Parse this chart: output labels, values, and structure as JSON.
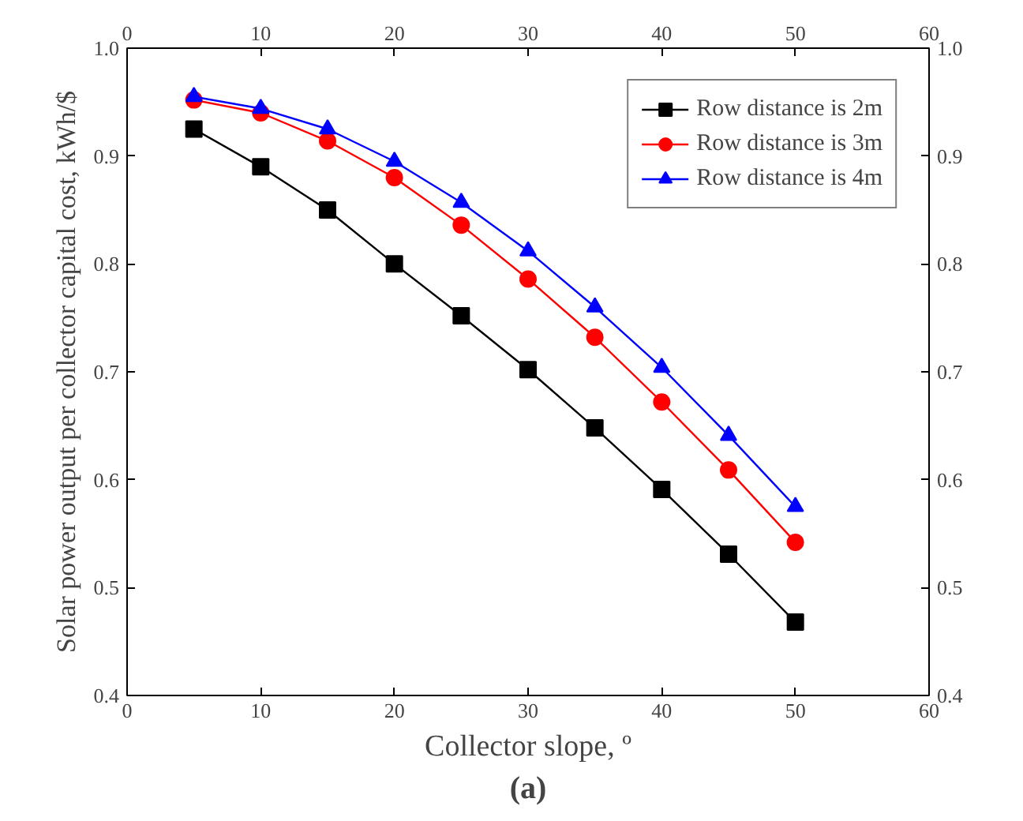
{
  "chart_data": {
    "type": "line",
    "xlabel": "Collector slope, º",
    "ylabel": "Solar power output per collector capital cost, kWh/$",
    "annotations": [
      "(a)"
    ],
    "x": [
      5,
      10,
      15,
      20,
      25,
      30,
      35,
      40,
      45,
      50
    ],
    "series": [
      {
        "name": "Row distance is 2m",
        "color": "#000000",
        "marker": "square",
        "values": [
          0.925,
          0.89,
          0.85,
          0.8,
          0.752,
          0.702,
          0.648,
          0.591,
          0.531,
          0.468
        ]
      },
      {
        "name": "Row distance is 3m",
        "color": "#ff0000",
        "marker": "circle",
        "values": [
          0.952,
          0.94,
          0.914,
          0.88,
          0.836,
          0.786,
          0.732,
          0.672,
          0.609,
          0.542
        ]
      },
      {
        "name": "Row distance is 4m",
        "color": "#0000ff",
        "marker": "triangle",
        "values": [
          0.955,
          0.944,
          0.925,
          0.895,
          0.857,
          0.812,
          0.76,
          0.704,
          0.641,
          0.575
        ]
      }
    ],
    "xlim": [
      0,
      60
    ],
    "xticks": [
      0,
      10,
      20,
      30,
      40,
      50,
      60
    ],
    "x2lim": [
      0,
      60
    ],
    "x2ticks": [
      0,
      10,
      20,
      30,
      40,
      50,
      60
    ],
    "ylim": [
      0.4,
      1.0
    ],
    "yticks": [
      0.4,
      0.5,
      0.6,
      0.7,
      0.8,
      0.9,
      {
        "value": 1.0,
        "label": "1.0"
      }
    ],
    "y2lim": [
      0.4,
      1.0
    ],
    "y2ticks": [
      0.4,
      0.5,
      0.6,
      0.7,
      0.8,
      0.9,
      {
        "value": 1.0,
        "label": "1.0"
      }
    ],
    "grid": false,
    "legend": "top right",
    "line_style": "solid"
  }
}
